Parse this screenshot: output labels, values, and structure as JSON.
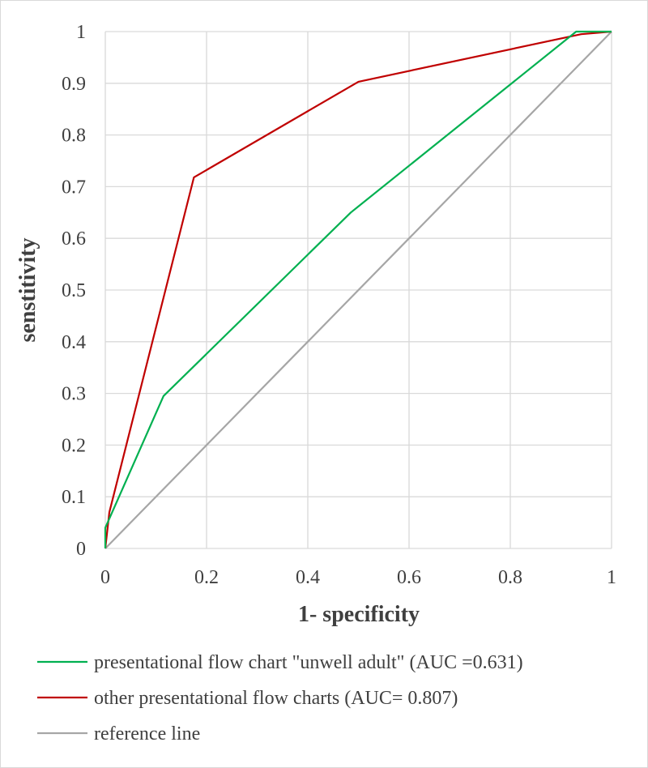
{
  "chart_data": {
    "type": "line",
    "title": "",
    "xlabel": "1- specificity",
    "ylabel": "senstitivity",
    "xlim": [
      0,
      1
    ],
    "ylim": [
      0,
      1
    ],
    "x_ticks": [
      "0",
      "0.2",
      "0.4",
      "0.6",
      "0.8",
      "1"
    ],
    "y_ticks": [
      "0",
      "0.1",
      "0.2",
      "0.3",
      "0.4",
      "0.5",
      "0.6",
      "0.7",
      "0.8",
      "0.9",
      "1"
    ],
    "grid": true,
    "legend_position": "bottom",
    "series": [
      {
        "name": "presentational flow chart \"unwell adult\" (AUC =0.631)",
        "color": "#00b050",
        "points": [
          [
            0,
            0
          ],
          [
            0.0,
            0.04
          ],
          [
            0.115,
            0.295
          ],
          [
            0.485,
            0.65
          ],
          [
            0.93,
            1.0
          ],
          [
            1.0,
            1.0
          ]
        ]
      },
      {
        "name": "other presentational flow charts (AUC= 0.807)",
        "color": "#c00000",
        "points": [
          [
            0,
            0
          ],
          [
            0.008,
            0.07
          ],
          [
            0.175,
            0.718
          ],
          [
            0.5,
            0.903
          ],
          [
            0.94,
            0.995
          ],
          [
            1.0,
            1.0
          ]
        ]
      },
      {
        "name": "reference line",
        "color": "#a6a6a6",
        "points": [
          [
            0,
            0
          ],
          [
            1,
            1
          ]
        ]
      }
    ]
  }
}
